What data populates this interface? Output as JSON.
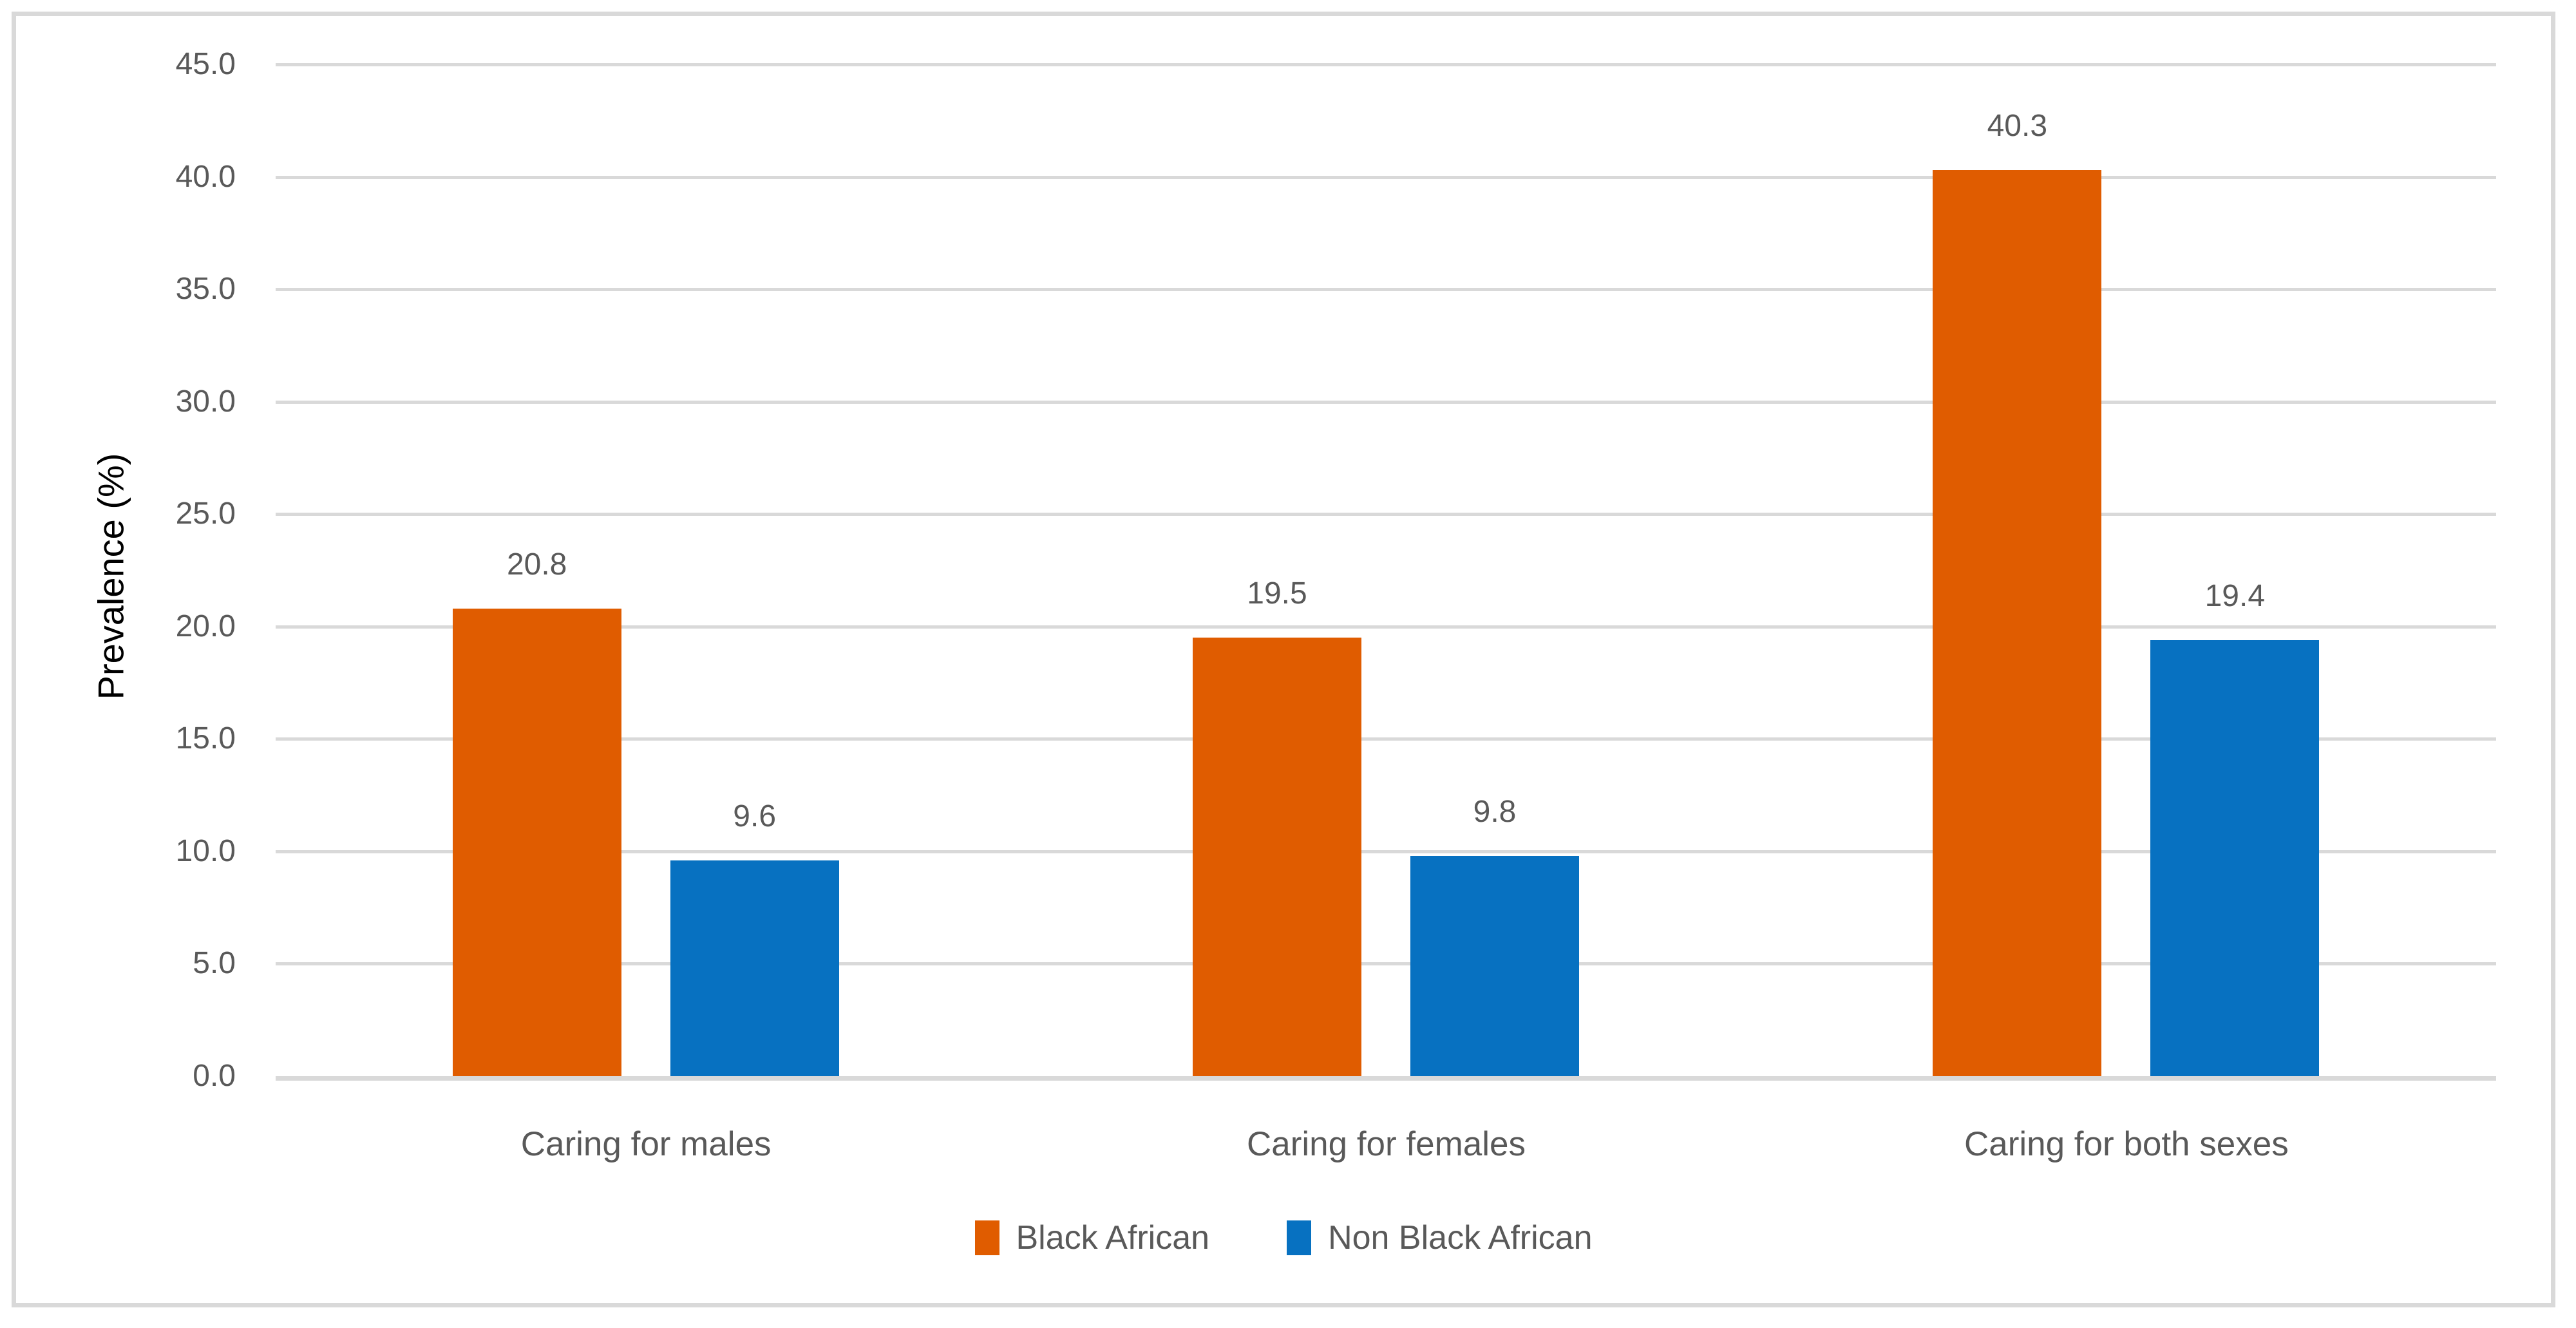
{
  "chart_data": {
    "type": "bar",
    "title": "",
    "xlabel": "",
    "ylabel": "Prevalence (%)",
    "categories": [
      "Caring for males",
      "Caring for females",
      "Caring for both sexes"
    ],
    "series": [
      {
        "name": "Black African",
        "color": "#E05C00",
        "values": [
          20.8,
          19.5,
          40.3
        ],
        "labels": [
          "20.8",
          "19.5",
          "40.3"
        ]
      },
      {
        "name": "Non Black African",
        "color": "#0771C1",
        "values": [
          9.6,
          9.8,
          19.4
        ],
        "labels": [
          "9.6",
          "9.8",
          "19.4"
        ]
      }
    ],
    "ylim": [
      0,
      45
    ],
    "ytick_step": 5,
    "ytick_labels": [
      "0.0",
      "5.0",
      "10.0",
      "15.0",
      "20.0",
      "25.0",
      "30.0",
      "35.0",
      "40.0",
      "45.0"
    ],
    "grid": "horizontal",
    "legend_position": "bottom"
  },
  "style_colors": {
    "grid": "#D9D9D9",
    "frame_border": "#D9D9D9",
    "axis_text": "#595959",
    "axis_title_text": "#000000",
    "background": "#FFFFFF"
  }
}
